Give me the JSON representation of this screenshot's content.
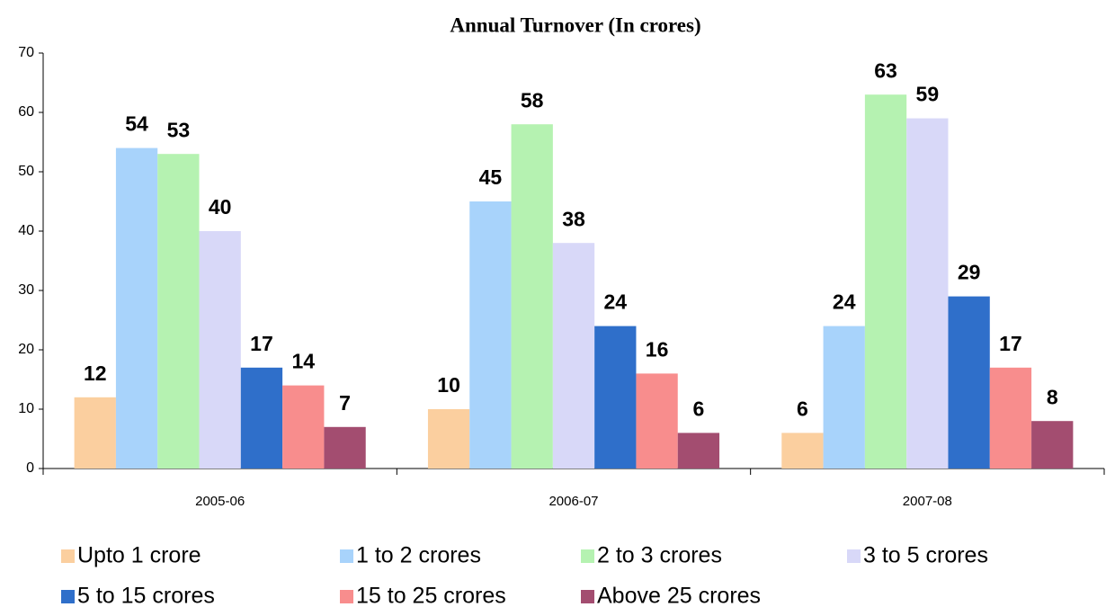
{
  "chart_data": {
    "type": "bar",
    "title": "Annual Turnover (In crores)",
    "categories": [
      "2005-06",
      "2006-07",
      "2007-08"
    ],
    "series": [
      {
        "name": "Upto 1 crore",
        "color": "#fbcf9f",
        "values": [
          12,
          10,
          6
        ]
      },
      {
        "name": "1 to 2 crores",
        "color": "#a8d3fb",
        "values": [
          54,
          45,
          24
        ]
      },
      {
        "name": "2 to 3 crores",
        "color": "#b5f2b1",
        "values": [
          53,
          58,
          63
        ]
      },
      {
        "name": "3 to 5 crores",
        "color": "#d8d8f8",
        "values": [
          40,
          38,
          59
        ]
      },
      {
        "name": "5 to 15 crores",
        "color": "#2f6fca",
        "values": [
          17,
          24,
          29
        ]
      },
      {
        "name": "15 to 25 crores",
        "color": "#f88d8d",
        "values": [
          14,
          16,
          17
        ]
      },
      {
        "name": "Above 25 crores",
        "color": "#a34d70",
        "values": [
          7,
          6,
          8
        ]
      }
    ],
    "ylim": [
      0,
      70
    ],
    "yticks": [
      0,
      10,
      20,
      30,
      40,
      50,
      60,
      70
    ],
    "legend": "bottom"
  }
}
